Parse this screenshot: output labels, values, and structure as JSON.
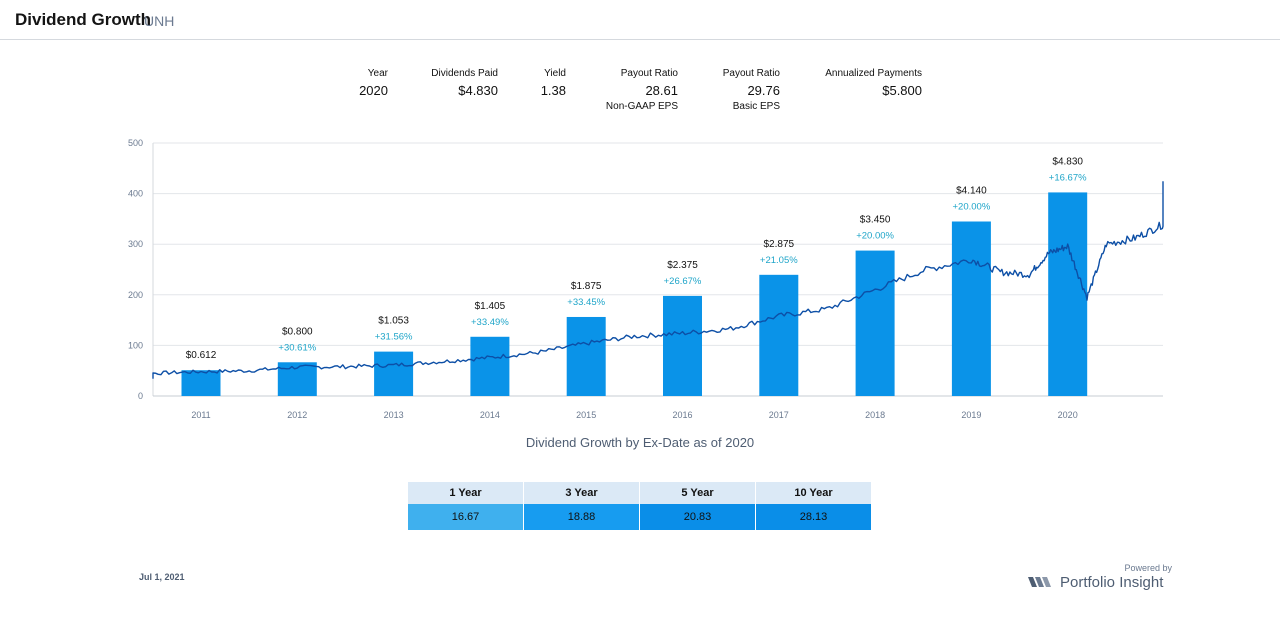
{
  "header": {
    "title": "Dividend Growth",
    "ticker": "UNH"
  },
  "stats": {
    "year": {
      "label": "Year",
      "value": "2020"
    },
    "dividends_paid": {
      "label": "Dividends Paid",
      "value": "$4.830"
    },
    "yield": {
      "label": "Yield",
      "value": "1.38"
    },
    "payout_nongaap": {
      "label": "Payout Ratio",
      "value": "28.61",
      "sub": "Non-GAAP EPS"
    },
    "payout_basic": {
      "label": "Payout Ratio",
      "value": "29.76",
      "sub": "Basic EPS"
    },
    "annualized": {
      "label": "Annualized Payments",
      "value": "$5.800"
    }
  },
  "chart_data": {
    "type": "bar",
    "title": "Dividend Growth by Ex-Date as of 2020",
    "categories": [
      "2011",
      "2012",
      "2013",
      "2014",
      "2015",
      "2016",
      "2017",
      "2018",
      "2019",
      "2020"
    ],
    "series": [
      {
        "values": [
          0.612,
          0.8,
          1.053,
          1.405,
          1.875,
          2.375,
          2.875,
          3.45,
          4.14,
          4.83
        ],
        "value_labels": [
          "$0.612",
          "$0.800",
          "$1.053",
          "$1.405",
          "$1.875",
          "$2.375",
          "$2.875",
          "$3.450",
          "$4.140",
          "$4.830"
        ],
        "growth_labels": [
          "",
          "+30.61%",
          "+31.56%",
          "+33.49%",
          "+33.45%",
          "+26.67%",
          "+21.05%",
          "+20.00%",
          "+20.00%",
          "+16.67%"
        ],
        "color": "#0a93e8"
      },
      {
        "type": "line",
        "color": "#0d4fa6",
        "points": [
          [
            2010.0,
            37
          ],
          [
            2010.5,
            45
          ],
          [
            2011.0,
            48
          ],
          [
            2011.5,
            50
          ],
          [
            2012.0,
            57
          ],
          [
            2012.5,
            58
          ],
          [
            2013.0,
            61
          ],
          [
            2013.5,
            68
          ],
          [
            2014.0,
            76
          ],
          [
            2014.5,
            86
          ],
          [
            2015.0,
            104
          ],
          [
            2015.5,
            118
          ],
          [
            2016.0,
            124
          ],
          [
            2016.5,
            133
          ],
          [
            2017.0,
            158
          ],
          [
            2017.5,
            172
          ],
          [
            2018.0,
            210
          ],
          [
            2018.5,
            248
          ],
          [
            2019.0,
            270
          ],
          [
            2019.3,
            245
          ],
          [
            2019.6,
            240
          ],
          [
            2019.8,
            282
          ],
          [
            2020.0,
            296
          ],
          [
            2020.2,
            195
          ],
          [
            2020.4,
            300
          ],
          [
            2020.7,
            312
          ],
          [
            2021.0,
            340
          ],
          [
            2021.2,
            365
          ],
          [
            2021.4,
            415
          ],
          [
            2021.5,
            398
          ]
        ]
      }
    ],
    "y_ticks": [
      "0",
      "100",
      "200",
      "300",
      "400",
      "500"
    ],
    "ylim": [
      0,
      500
    ],
    "line_to_bar_scale": 83.3,
    "grid": true
  },
  "growth_table": {
    "headers": [
      "1 Year",
      "3 Year",
      "5 Year",
      "10 Year"
    ],
    "values": [
      "16.67",
      "18.88",
      "20.83",
      "28.13"
    ]
  },
  "footer": {
    "date": "Jul 1, 2021",
    "powered_by": "Powered by",
    "brand": "Portfolio Insight"
  }
}
